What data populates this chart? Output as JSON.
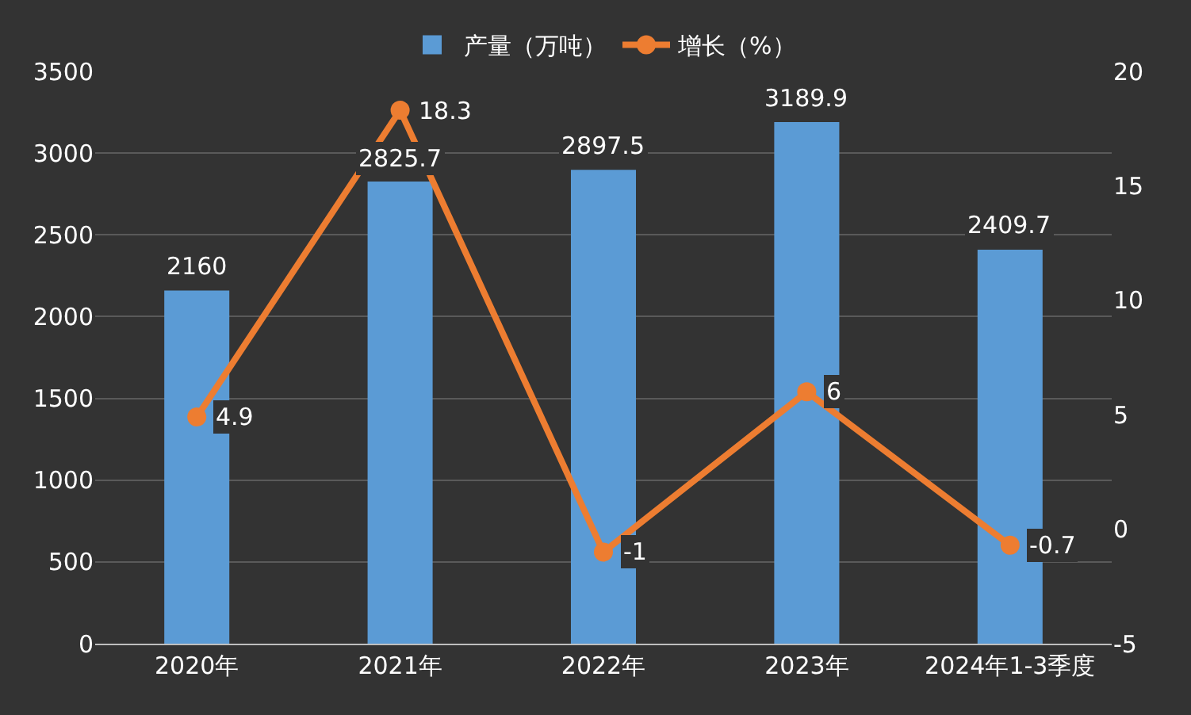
{
  "chart_data": {
    "type": "bar",
    "categories": [
      "2020年",
      "2021年",
      "2022年",
      "2023年",
      "2024年1-3季度"
    ],
    "series": [
      {
        "name": "产量（万吨）",
        "color": "#5b9bd5",
        "values": [
          2160,
          2825.7,
          2897.5,
          3189.9,
          2409.7
        ]
      },
      {
        "name": "增长（%）",
        "type": "line",
        "axis": "y2",
        "color": "#ed7d31",
        "values": [
          4.9,
          18.3,
          -1,
          6,
          -0.7
        ]
      }
    ],
    "ylim": [
      0,
      3500
    ],
    "yticks": [
      0,
      500,
      1000,
      1500,
      2000,
      2500,
      3000,
      3500
    ],
    "y2lim": [
      -5,
      20
    ],
    "y2ticks": [
      -5,
      0,
      5,
      10,
      15,
      20
    ],
    "grid": "y",
    "legend": "top",
    "marker": "circle",
    "line_style": "solid",
    "data_labels": true
  }
}
